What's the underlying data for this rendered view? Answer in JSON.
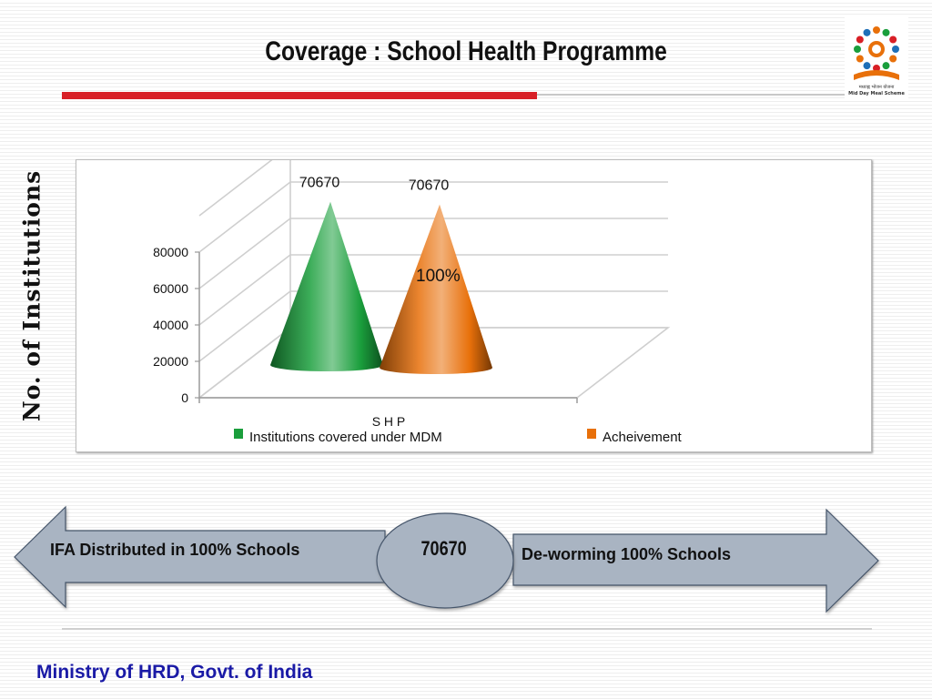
{
  "slide": {
    "title": "Coverage : School Health Programme",
    "y_axis_label": "No. of Institutions",
    "footer": "Ministry of HRD, Govt. of India",
    "logo_text_hindi": "मध्याह्न भोजन योजना",
    "logo_text_english": "Mid Day Meal Scheme"
  },
  "arrows": {
    "left_label": "IFA Distributed in 100% Schools",
    "center_value": "70670",
    "right_label": "De-worming 100% Schools"
  },
  "chart_data": {
    "type": "bar",
    "style": "3d-cone",
    "categories": [
      "S H P"
    ],
    "series": [
      {
        "name": "Institutions covered under MDM",
        "values": [
          70670
        ],
        "color": "#1a9e3c",
        "data_label": "70670"
      },
      {
        "name": "Acheivement",
        "values": [
          70670
        ],
        "color": "#e8700a",
        "data_label": "70670"
      }
    ],
    "annotation": "100%",
    "ylim": [
      0,
      80000
    ],
    "y_ticks": [
      "0",
      "20000",
      "40000",
      "60000",
      "80000"
    ],
    "gridlines": true,
    "legend_position": "bottom"
  },
  "colors": {
    "title_rule": "#d81f26",
    "footer_text": "#1a1aa6",
    "arrow_fill": "#a9b4c2",
    "ellipse_fill": "#a9b4c2"
  }
}
